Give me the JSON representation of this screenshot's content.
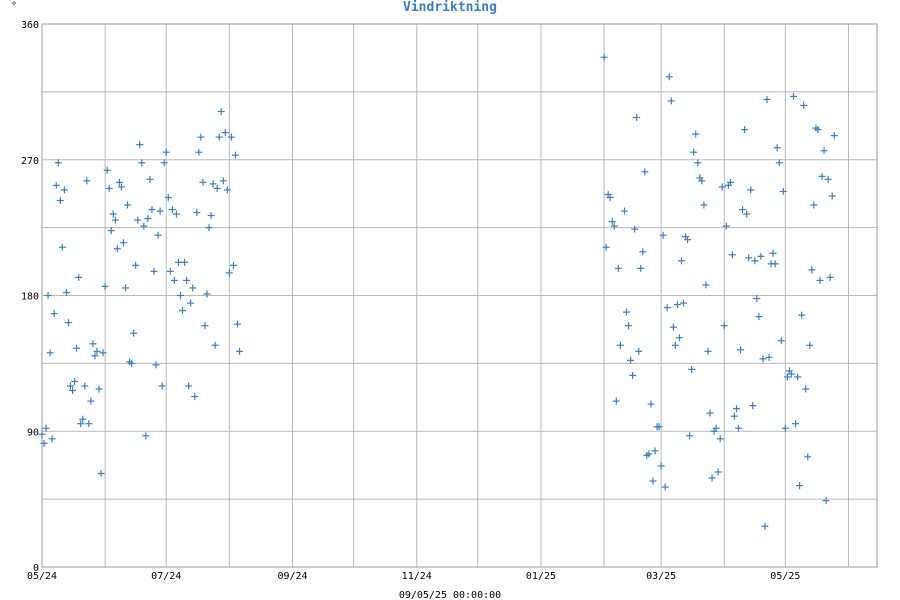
{
  "chart_data": {
    "type": "scatter",
    "title": "Vindriktning",
    "ylabel": "°",
    "footer": "09/05/25 00:00:00",
    "ylim": [
      0,
      360
    ],
    "yticks": [
      0,
      90,
      180,
      270,
      360
    ],
    "xlim": [
      "2024-05-01",
      "2025-06-15"
    ],
    "xticks": [
      {
        "label": "05/24",
        "date": "2024-05-01"
      },
      {
        "label": "07/24",
        "date": "2024-07-01"
      },
      {
        "label": "09/24",
        "date": "2024-09-01"
      },
      {
        "label": "11/24",
        "date": "2024-11-01"
      },
      {
        "label": "01/25",
        "date": "2025-01-01"
      },
      {
        "label": "03/25",
        "date": "2025-03-01"
      },
      {
        "label": "05/25",
        "date": "2025-05-01"
      }
    ],
    "color": "#3a7fbf",
    "marker": "plus",
    "series": [
      {
        "points": [
          [
            "2024-05-01",
            88
          ],
          [
            "2024-05-02",
            82
          ],
          [
            "2024-05-03",
            92
          ],
          [
            "2024-05-04",
            180
          ],
          [
            "2024-05-05",
            142
          ],
          [
            "2024-05-06",
            85
          ],
          [
            "2024-05-07",
            168
          ],
          [
            "2024-05-08",
            253
          ],
          [
            "2024-05-09",
            268
          ],
          [
            "2024-05-10",
            243
          ],
          [
            "2024-05-11",
            212
          ],
          [
            "2024-05-12",
            250
          ],
          [
            "2024-05-13",
            182
          ],
          [
            "2024-05-14",
            162
          ],
          [
            "2024-05-15",
            120
          ],
          [
            "2024-05-16",
            117
          ],
          [
            "2024-05-17",
            123
          ],
          [
            "2024-05-18",
            145
          ],
          [
            "2024-05-19",
            192
          ],
          [
            "2024-05-20",
            95
          ],
          [
            "2024-05-21",
            98
          ],
          [
            "2024-05-22",
            120
          ],
          [
            "2024-05-23",
            256
          ],
          [
            "2024-05-24",
            95
          ],
          [
            "2024-05-25",
            110
          ],
          [
            "2024-05-26",
            148
          ],
          [
            "2024-05-27",
            140
          ],
          [
            "2024-05-28",
            143
          ],
          [
            "2024-05-29",
            118
          ],
          [
            "2024-05-30",
            62
          ],
          [
            "2024-05-31",
            142
          ],
          [
            "2024-06-01",
            186
          ],
          [
            "2024-06-02",
            263
          ],
          [
            "2024-06-03",
            251
          ],
          [
            "2024-06-04",
            223
          ],
          [
            "2024-06-05",
            234
          ],
          [
            "2024-06-06",
            230
          ],
          [
            "2024-06-07",
            211
          ],
          [
            "2024-06-08",
            255
          ],
          [
            "2024-06-09",
            252
          ],
          [
            "2024-06-10",
            215
          ],
          [
            "2024-06-11",
            185
          ],
          [
            "2024-06-12",
            240
          ],
          [
            "2024-06-13",
            136
          ],
          [
            "2024-06-14",
            135
          ],
          [
            "2024-06-15",
            155
          ],
          [
            "2024-06-16",
            200
          ],
          [
            "2024-06-17",
            230
          ],
          [
            "2024-06-18",
            280
          ],
          [
            "2024-06-19",
            268
          ],
          [
            "2024-06-20",
            226
          ],
          [
            "2024-06-21",
            87
          ],
          [
            "2024-06-22",
            231
          ],
          [
            "2024-06-23",
            257
          ],
          [
            "2024-06-24",
            237
          ],
          [
            "2024-06-25",
            196
          ],
          [
            "2024-06-26",
            134
          ],
          [
            "2024-06-27",
            220
          ],
          [
            "2024-06-28",
            236
          ],
          [
            "2024-06-29",
            120
          ],
          [
            "2024-06-30",
            268
          ],
          [
            "2024-07-01",
            275
          ],
          [
            "2024-07-02",
            245
          ],
          [
            "2024-07-03",
            196
          ],
          [
            "2024-07-04",
            237
          ],
          [
            "2024-07-05",
            190
          ],
          [
            "2024-07-06",
            234
          ],
          [
            "2024-07-07",
            202
          ],
          [
            "2024-07-08",
            180
          ],
          [
            "2024-07-09",
            170
          ],
          [
            "2024-07-10",
            202
          ],
          [
            "2024-07-11",
            190
          ],
          [
            "2024-07-12",
            120
          ],
          [
            "2024-07-13",
            175
          ],
          [
            "2024-07-14",
            185
          ],
          [
            "2024-07-15",
            113
          ],
          [
            "2024-07-16",
            235
          ],
          [
            "2024-07-17",
            275
          ],
          [
            "2024-07-18",
            285
          ],
          [
            "2024-07-19",
            255
          ],
          [
            "2024-07-20",
            160
          ],
          [
            "2024-07-21",
            181
          ],
          [
            "2024-07-22",
            225
          ],
          [
            "2024-07-23",
            233
          ],
          [
            "2024-07-24",
            254
          ],
          [
            "2024-07-25",
            147
          ],
          [
            "2024-07-26",
            251
          ],
          [
            "2024-07-27",
            285
          ],
          [
            "2024-07-28",
            302
          ],
          [
            "2024-07-29",
            256
          ],
          [
            "2024-07-30",
            288
          ],
          [
            "2024-07-31",
            250
          ],
          [
            "2024-08-01",
            195
          ],
          [
            "2024-08-02",
            285
          ],
          [
            "2024-08-03",
            200
          ],
          [
            "2024-08-04",
            273
          ],
          [
            "2024-08-05",
            161
          ],
          [
            "2024-08-06",
            143
          ],
          [
            "2025-02-01",
            338
          ],
          [
            "2025-02-02",
            212
          ],
          [
            "2025-02-03",
            247
          ],
          [
            "2025-02-04",
            245
          ],
          [
            "2025-02-05",
            229
          ],
          [
            "2025-02-06",
            226
          ],
          [
            "2025-02-07",
            110
          ],
          [
            "2025-02-08",
            198
          ],
          [
            "2025-02-09",
            147
          ],
          [
            "2025-02-11",
            236
          ],
          [
            "2025-02-12",
            169
          ],
          [
            "2025-02-13",
            160
          ],
          [
            "2025-02-14",
            137
          ],
          [
            "2025-02-15",
            127
          ],
          [
            "2025-02-16",
            224
          ],
          [
            "2025-02-17",
            298
          ],
          [
            "2025-02-18",
            143
          ],
          [
            "2025-02-19",
            198
          ],
          [
            "2025-02-20",
            209
          ],
          [
            "2025-02-21",
            262
          ],
          [
            "2025-02-22",
            74
          ],
          [
            "2025-02-23",
            75
          ],
          [
            "2025-02-24",
            108
          ],
          [
            "2025-02-25",
            57
          ],
          [
            "2025-02-26",
            77
          ],
          [
            "2025-02-27",
            93
          ],
          [
            "2025-02-28",
            93
          ],
          [
            "2025-03-01",
            67
          ],
          [
            "2025-03-02",
            220
          ],
          [
            "2025-03-03",
            53
          ],
          [
            "2025-03-04",
            172
          ],
          [
            "2025-03-05",
            325
          ],
          [
            "2025-03-06",
            309
          ],
          [
            "2025-03-07",
            159
          ],
          [
            "2025-03-08",
            147
          ],
          [
            "2025-03-09",
            174
          ],
          [
            "2025-03-10",
            152
          ],
          [
            "2025-03-11",
            203
          ],
          [
            "2025-03-12",
            175
          ],
          [
            "2025-03-13",
            219
          ],
          [
            "2025-03-14",
            217
          ],
          [
            "2025-03-15",
            87
          ],
          [
            "2025-03-16",
            131
          ],
          [
            "2025-03-17",
            275
          ],
          [
            "2025-03-18",
            287
          ],
          [
            "2025-03-19",
            268
          ],
          [
            "2025-03-20",
            258
          ],
          [
            "2025-03-21",
            256
          ],
          [
            "2025-03-22",
            240
          ],
          [
            "2025-03-23",
            187
          ],
          [
            "2025-03-24",
            143
          ],
          [
            "2025-03-25",
            102
          ],
          [
            "2025-03-26",
            59
          ],
          [
            "2025-03-27",
            90
          ],
          [
            "2025-03-28",
            92
          ],
          [
            "2025-03-29",
            63
          ],
          [
            "2025-03-30",
            85
          ],
          [
            "2025-03-31",
            252
          ],
          [
            "2025-04-01",
            160
          ],
          [
            "2025-04-02",
            226
          ],
          [
            "2025-04-03",
            253
          ],
          [
            "2025-04-04",
            255
          ],
          [
            "2025-04-05",
            207
          ],
          [
            "2025-04-06",
            100
          ],
          [
            "2025-04-07",
            105
          ],
          [
            "2025-04-08",
            92
          ],
          [
            "2025-04-09",
            144
          ],
          [
            "2025-04-10",
            237
          ],
          [
            "2025-04-11",
            290
          ],
          [
            "2025-04-12",
            234
          ],
          [
            "2025-04-13",
            205
          ],
          [
            "2025-04-14",
            250
          ],
          [
            "2025-04-15",
            107
          ],
          [
            "2025-04-16",
            203
          ],
          [
            "2025-04-17",
            178
          ],
          [
            "2025-04-18",
            166
          ],
          [
            "2025-04-19",
            206
          ],
          [
            "2025-04-20",
            138
          ],
          [
            "2025-04-21",
            27
          ],
          [
            "2025-04-22",
            310
          ],
          [
            "2025-04-23",
            139
          ],
          [
            "2025-04-24",
            201
          ],
          [
            "2025-04-25",
            208
          ],
          [
            "2025-04-26",
            201
          ],
          [
            "2025-04-27",
            278
          ],
          [
            "2025-04-28",
            268
          ],
          [
            "2025-04-29",
            150
          ],
          [
            "2025-04-30",
            249
          ],
          [
            "2025-05-01",
            92
          ],
          [
            "2025-05-02",
            126
          ],
          [
            "2025-05-03",
            130
          ],
          [
            "2025-05-04",
            128
          ],
          [
            "2025-05-05",
            312
          ],
          [
            "2025-05-06",
            95
          ],
          [
            "2025-05-07",
            126
          ],
          [
            "2025-05-08",
            54
          ],
          [
            "2025-05-09",
            167
          ],
          [
            "2025-05-10",
            306
          ],
          [
            "2025-05-11",
            118
          ],
          [
            "2025-05-12",
            73
          ],
          [
            "2025-05-13",
            147
          ],
          [
            "2025-05-14",
            197
          ],
          [
            "2025-05-15",
            240
          ],
          [
            "2025-05-16",
            291
          ],
          [
            "2025-05-17",
            290
          ],
          [
            "2025-05-18",
            190
          ],
          [
            "2025-05-19",
            259
          ],
          [
            "2025-05-20",
            276
          ],
          [
            "2025-05-21",
            44
          ],
          [
            "2025-05-22",
            257
          ],
          [
            "2025-05-23",
            192
          ],
          [
            "2025-05-24",
            246
          ],
          [
            "2025-05-25",
            286
          ]
        ]
      }
    ],
    "grid": true
  }
}
